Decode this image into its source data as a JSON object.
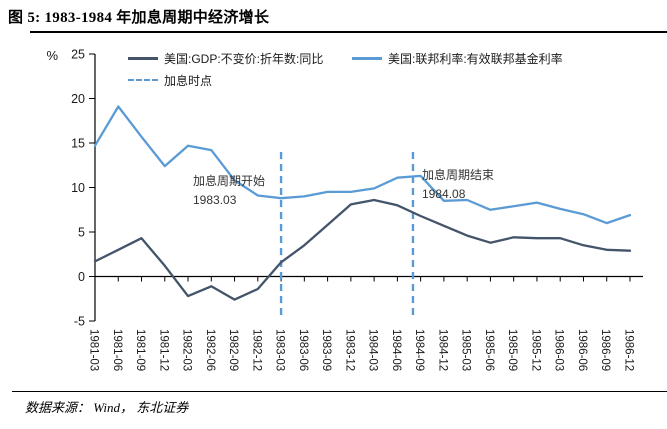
{
  "header": {
    "title": "图 5:  1983-1984 年加息周期中经济增长"
  },
  "footer": {
    "source": "数据来源： Wind， 东北证券"
  },
  "chart_data": {
    "type": "line",
    "title": "1983-1984 年加息周期中经济增长",
    "y_axis": {
      "unit": "%",
      "ticks": [
        25,
        20,
        15,
        10,
        5,
        0,
        -5
      ],
      "min": -5,
      "max": 25
    },
    "grid": false,
    "legend_position": "top-inside",
    "categories": [
      "1981-03",
      "1981-06",
      "1981-09",
      "1981-12",
      "1982-03",
      "1982-06",
      "1982-09",
      "1982-12",
      "1983-03",
      "1983-06",
      "1983-09",
      "1983-12",
      "1984-03",
      "1984-06",
      "1984-09",
      "1984-12",
      "1985-03",
      "1985-06",
      "1985-09",
      "1985-12",
      "1986-03",
      "1986-06",
      "1986-09",
      "1986-12"
    ],
    "series": [
      {
        "name": "美国:GDP:不变价:折年数:同比",
        "color": "#44546A",
        "style": "solid",
        "values": [
          1.7,
          3.0,
          4.3,
          1.2,
          -2.2,
          -1.1,
          -2.6,
          -1.4,
          1.6,
          3.5,
          5.8,
          8.1,
          8.6,
          8.0,
          6.8,
          5.7,
          4.6,
          3.8,
          4.4,
          4.3,
          4.3,
          3.5,
          3.0,
          2.9
        ]
      },
      {
        "name": "美国:联邦利率:有效联邦基金利率",
        "color": "#5B9BD5",
        "style": "solid",
        "values": [
          14.7,
          19.1,
          15.7,
          12.4,
          14.7,
          14.2,
          10.8,
          9.1,
          8.8,
          9.0,
          9.5,
          9.5,
          9.9,
          11.1,
          11.3,
          8.5,
          8.6,
          7.5,
          7.9,
          8.3,
          7.6,
          7.0,
          6.0,
          6.9
        ]
      }
    ],
    "hike_marker_label": "加息时点",
    "event_lines": [
      {
        "label": "加息周期开始",
        "date_label": "1983.03",
        "index": 8,
        "color": "#5B9BD5"
      },
      {
        "label": "加息周期结束",
        "date_label": "1984.08",
        "index": 13.67,
        "color": "#5B9BD5"
      }
    ]
  }
}
